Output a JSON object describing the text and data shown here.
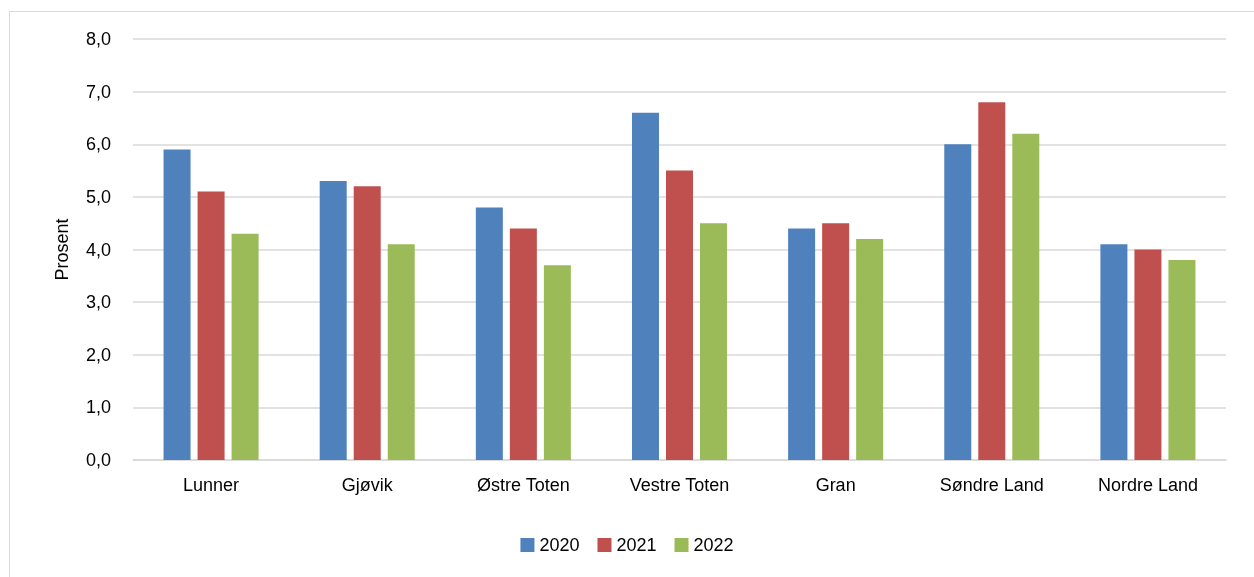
{
  "chart_data": {
    "type": "bar",
    "ylabel": "Prosent",
    "categories": [
      "Lunner",
      "Gjøvik",
      "Østre Toten",
      "Vestre Toten",
      "Gran",
      "Søndre Land",
      "Nordre Land"
    ],
    "series": [
      {
        "name": "2020",
        "color": "#4f81bd",
        "values": [
          5.9,
          5.3,
          4.8,
          6.6,
          4.4,
          6.0,
          4.1
        ]
      },
      {
        "name": "2021",
        "color": "#c0504d",
        "values": [
          5.1,
          5.2,
          4.4,
          5.5,
          4.5,
          6.8,
          4.0
        ]
      },
      {
        "name": "2022",
        "color": "#9bbb59",
        "values": [
          4.3,
          4.1,
          3.7,
          4.5,
          4.2,
          6.2,
          3.8
        ]
      }
    ],
    "ylim": [
      0,
      8
    ],
    "yticks": [
      {
        "value": 0,
        "label": "0,0"
      },
      {
        "value": 1,
        "label": "1,0"
      },
      {
        "value": 2,
        "label": "2,0"
      },
      {
        "value": 3,
        "label": "3,0"
      },
      {
        "value": 4,
        "label": "4,0"
      },
      {
        "value": 5,
        "label": "5,0"
      },
      {
        "value": 6,
        "label": "6,0"
      },
      {
        "value": 7,
        "label": "7,0"
      },
      {
        "value": 8,
        "label": "8,0"
      }
    ],
    "grid": "y",
    "legend": "bottom"
  }
}
